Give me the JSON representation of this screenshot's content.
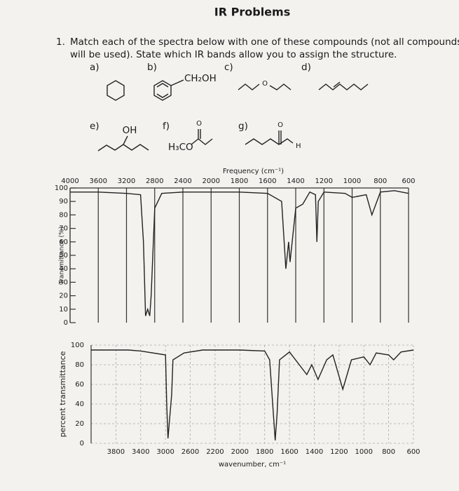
{
  "header": {
    "title": "IR Problems"
  },
  "question": {
    "number": "1.",
    "lines": [
      "Match each of the spectra below with one of these compounds (not all compounds",
      "will be used). State which IR bands allow you to assign the structure."
    ]
  },
  "compounds": [
    {
      "label": "a)"
    },
    {
      "label": "b)",
      "text": [
        "CH₂OH"
      ]
    },
    {
      "label": "c)",
      "text": [
        "O"
      ]
    },
    {
      "label": "d)"
    },
    {
      "label": "e)",
      "text": [
        "OH"
      ]
    },
    {
      "label": "f)",
      "text": [
        "O",
        "H₃CO"
      ]
    },
    {
      "label": "g)",
      "text": [
        "O",
        "H"
      ]
    }
  ],
  "chart_data": [
    {
      "type": "line",
      "x_label": "Frequency (cm⁻¹)",
      "y_label": "Transmittance (%)",
      "x_axis": "top",
      "grid": "solid",
      "color": "#222222",
      "xlim": [
        4000,
        600
      ],
      "ylim": [
        0,
        100
      ],
      "xticks": [
        4000,
        3600,
        3200,
        2800,
        2400,
        2000,
        1800,
        1600,
        1400,
        1200,
        1000,
        800,
        600
      ],
      "yticks": [
        0,
        10,
        20,
        30,
        40,
        50,
        60,
        70,
        80,
        90,
        100
      ],
      "x": [
        4000,
        3600,
        3200,
        3000,
        2960,
        2930,
        2900,
        2870,
        2850,
        2800,
        2700,
        2400,
        2000,
        1800,
        1600,
        1500,
        1470,
        1450,
        1440,
        1400,
        1350,
        1300,
        1260,
        1250,
        1240,
        1200,
        1050,
        1000,
        900,
        860,
        800,
        700,
        600
      ],
      "values": [
        97,
        97,
        96,
        95,
        60,
        5,
        10,
        5,
        20,
        85,
        96,
        97,
        97,
        97,
        96,
        90,
        40,
        60,
        45,
        85,
        88,
        97,
        95,
        60,
        90,
        97,
        96,
        93,
        95,
        80,
        97,
        98,
        96
      ]
    },
    {
      "type": "line",
      "x_label": "wavenumber, cm⁻¹",
      "y_label": "percent transmittance",
      "x_axis": "bottom",
      "grid": "dashed",
      "color": "#222222",
      "xlim": [
        4000,
        600
      ],
      "ylim": [
        0,
        100
      ],
      "xticks": [
        3800,
        3400,
        3000,
        2600,
        2200,
        2000,
        1800,
        1600,
        1400,
        1200,
        1000,
        800,
        600
      ],
      "yticks": [
        0,
        20,
        40,
        60,
        80,
        100
      ],
      "x": [
        4000,
        3600,
        3400,
        3000,
        2980,
        2960,
        2940,
        2900,
        2880,
        2700,
        2400,
        2200,
        2000,
        1800,
        1760,
        1730,
        1715,
        1700,
        1680,
        1600,
        1460,
        1420,
        1370,
        1300,
        1250,
        1170,
        1100,
        1000,
        950,
        900,
        800,
        760,
        700,
        600
      ],
      "values": [
        95,
        95,
        94,
        90,
        40,
        5,
        20,
        50,
        85,
        92,
        95,
        95,
        95,
        94,
        85,
        30,
        3,
        30,
        85,
        93,
        70,
        80,
        65,
        85,
        90,
        55,
        85,
        88,
        80,
        92,
        90,
        85,
        93,
        95
      ]
    }
  ]
}
